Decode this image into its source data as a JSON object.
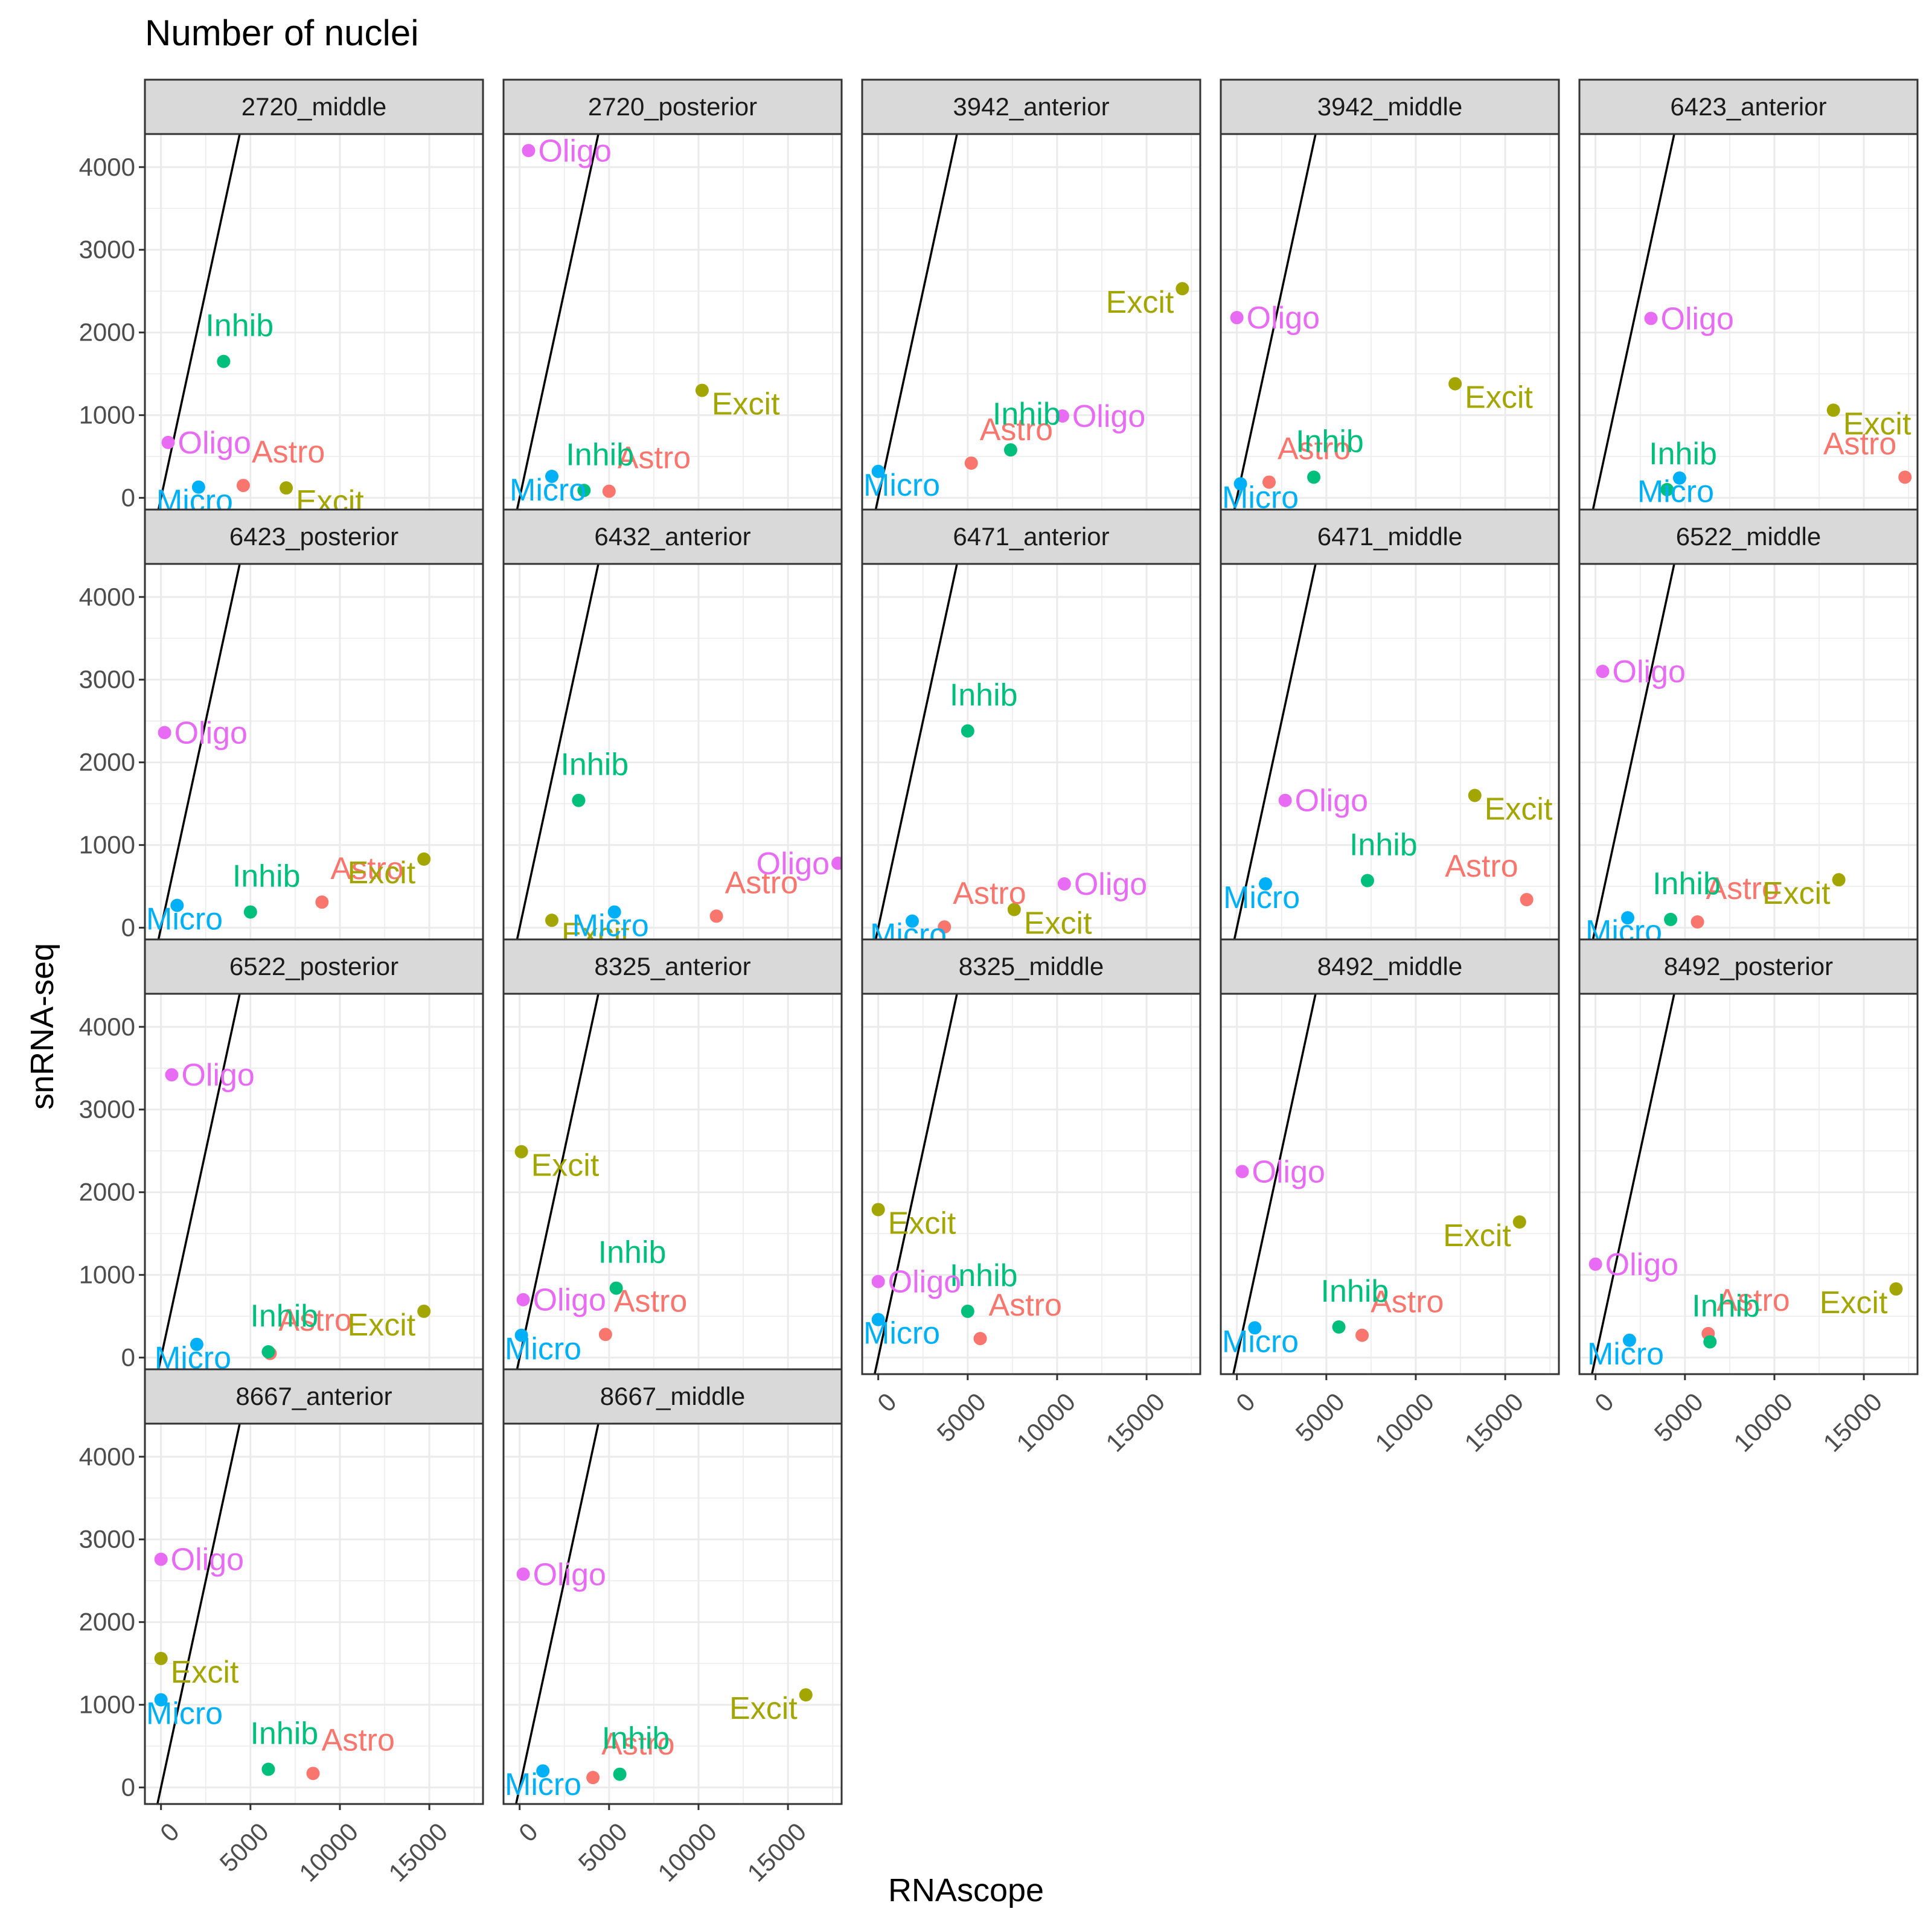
{
  "colors": {
    "Astro": "#F8766D",
    "Excit": "#A3A500",
    "Inhib": "#00BF7D",
    "Micro": "#00B0F6",
    "Oligo": "#E76BF3",
    "strip_bg": "#D9D9D9",
    "grid": "#EBEBEB",
    "axis_text": "#4D4D4D"
  },
  "chart_data": {
    "type": "scatter",
    "title": "Number of nuclei",
    "xlabel": "RNAscope",
    "ylabel": "snRNA-seq",
    "xlim": [
      -900,
      18000
    ],
    "ylim": [
      -200,
      4400
    ],
    "x_ticks": [
      0,
      5000,
      10000,
      15000
    ],
    "y_ticks": [
      0,
      1000,
      2000,
      3000,
      4000
    ],
    "grid": true,
    "reference_line": {
      "slope": 1,
      "intercept": 0
    },
    "legend": "none",
    "panels": [
      {
        "name": "2720_middle",
        "points": [
          {
            "label": "Astro",
            "x": 4600,
            "y": 150
          },
          {
            "label": "Excit",
            "x": 7000,
            "y": 120
          },
          {
            "label": "Inhib",
            "x": 3500,
            "y": 1650
          },
          {
            "label": "Micro",
            "x": 2100,
            "y": 130
          },
          {
            "label": "Oligo",
            "x": 400,
            "y": 670
          }
        ]
      },
      {
        "name": "2720_posterior",
        "points": [
          {
            "label": "Astro",
            "x": 5000,
            "y": 80
          },
          {
            "label": "Excit",
            "x": 10200,
            "y": 1300
          },
          {
            "label": "Inhib",
            "x": 3600,
            "y": 90
          },
          {
            "label": "Micro",
            "x": 1800,
            "y": 260
          },
          {
            "label": "Oligo",
            "x": 500,
            "y": 4200
          }
        ]
      },
      {
        "name": "3942_anterior",
        "points": [
          {
            "label": "Astro",
            "x": 5200,
            "y": 420
          },
          {
            "label": "Excit",
            "x": 17000,
            "y": 2530
          },
          {
            "label": "Inhib",
            "x": 7400,
            "y": 580
          },
          {
            "label": "Micro",
            "x": 0,
            "y": 320
          },
          {
            "label": "Oligo",
            "x": 10300,
            "y": 990
          }
        ]
      },
      {
        "name": "3942_middle",
        "points": [
          {
            "label": "Astro",
            "x": 1800,
            "y": 190
          },
          {
            "label": "Excit",
            "x": 12200,
            "y": 1380
          },
          {
            "label": "Inhib",
            "x": 4300,
            "y": 250
          },
          {
            "label": "Micro",
            "x": 200,
            "y": 170
          },
          {
            "label": "Oligo",
            "x": 0,
            "y": 2180
          }
        ]
      },
      {
        "name": "6423_anterior",
        "points": [
          {
            "label": "Astro",
            "x": 17300,
            "y": 250
          },
          {
            "label": "Excit",
            "x": 13300,
            "y": 1060
          },
          {
            "label": "Inhib",
            "x": 4000,
            "y": 100
          },
          {
            "label": "Micro",
            "x": 4700,
            "y": 240
          },
          {
            "label": "Oligo",
            "x": 3100,
            "y": 2170
          }
        ]
      },
      {
        "name": "6423_posterior",
        "points": [
          {
            "label": "Astro",
            "x": 9000,
            "y": 310
          },
          {
            "label": "Excit",
            "x": 14700,
            "y": 830
          },
          {
            "label": "Inhib",
            "x": 5000,
            "y": 190
          },
          {
            "label": "Micro",
            "x": 900,
            "y": 270
          },
          {
            "label": "Oligo",
            "x": 200,
            "y": 2360
          }
        ]
      },
      {
        "name": "6432_anterior",
        "points": [
          {
            "label": "Astro",
            "x": 11000,
            "y": 140
          },
          {
            "label": "Excit",
            "x": 1800,
            "y": 90
          },
          {
            "label": "Inhib",
            "x": 3300,
            "y": 1540
          },
          {
            "label": "Micro",
            "x": 5300,
            "y": 190
          },
          {
            "label": "Oligo",
            "x": 17800,
            "y": 780
          }
        ]
      },
      {
        "name": "6471_anterior",
        "points": [
          {
            "label": "Astro",
            "x": 3700,
            "y": 10
          },
          {
            "label": "Excit",
            "x": 7600,
            "y": 220
          },
          {
            "label": "Inhib",
            "x": 5000,
            "y": 2380
          },
          {
            "label": "Micro",
            "x": 1900,
            "y": 80
          },
          {
            "label": "Oligo",
            "x": 10400,
            "y": 530
          }
        ]
      },
      {
        "name": "6471_middle",
        "points": [
          {
            "label": "Astro",
            "x": 16200,
            "y": 340
          },
          {
            "label": "Excit",
            "x": 13300,
            "y": 1600
          },
          {
            "label": "Inhib",
            "x": 7300,
            "y": 570
          },
          {
            "label": "Micro",
            "x": 1600,
            "y": 530
          },
          {
            "label": "Oligo",
            "x": 2700,
            "y": 1540
          }
        ]
      },
      {
        "name": "6522_middle",
        "points": [
          {
            "label": "Astro",
            "x": 5700,
            "y": 70
          },
          {
            "label": "Excit",
            "x": 13600,
            "y": 580
          },
          {
            "label": "Inhib",
            "x": 4200,
            "y": 100
          },
          {
            "label": "Micro",
            "x": 1800,
            "y": 120
          },
          {
            "label": "Oligo",
            "x": 400,
            "y": 3100
          }
        ]
      },
      {
        "name": "6522_posterior",
        "points": [
          {
            "label": "Astro",
            "x": 6100,
            "y": 50
          },
          {
            "label": "Excit",
            "x": 14700,
            "y": 560
          },
          {
            "label": "Inhib",
            "x": 6000,
            "y": 70
          },
          {
            "label": "Micro",
            "x": 2000,
            "y": 160
          },
          {
            "label": "Oligo",
            "x": 600,
            "y": 3420
          }
        ]
      },
      {
        "name": "8325_anterior",
        "points": [
          {
            "label": "Astro",
            "x": 4800,
            "y": 280
          },
          {
            "label": "Excit",
            "x": 100,
            "y": 2490
          },
          {
            "label": "Inhib",
            "x": 5400,
            "y": 840
          },
          {
            "label": "Micro",
            "x": 100,
            "y": 270
          },
          {
            "label": "Oligo",
            "x": 200,
            "y": 700
          }
        ]
      },
      {
        "name": "8325_middle",
        "points": [
          {
            "label": "Astro",
            "x": 5700,
            "y": 230
          },
          {
            "label": "Excit",
            "x": 0,
            "y": 1790
          },
          {
            "label": "Inhib",
            "x": 5000,
            "y": 560
          },
          {
            "label": "Micro",
            "x": 0,
            "y": 460
          },
          {
            "label": "Oligo",
            "x": 0,
            "y": 920
          }
        ]
      },
      {
        "name": "8492_middle",
        "points": [
          {
            "label": "Astro",
            "x": 7000,
            "y": 270
          },
          {
            "label": "Excit",
            "x": 15800,
            "y": 1640
          },
          {
            "label": "Inhib",
            "x": 5700,
            "y": 370
          },
          {
            "label": "Micro",
            "x": 1000,
            "y": 360
          },
          {
            "label": "Oligo",
            "x": 300,
            "y": 2250
          }
        ]
      },
      {
        "name": "8492_posterior",
        "points": [
          {
            "label": "Astro",
            "x": 6300,
            "y": 290
          },
          {
            "label": "Excit",
            "x": 16800,
            "y": 830
          },
          {
            "label": "Inhib",
            "x": 6400,
            "y": 190
          },
          {
            "label": "Micro",
            "x": 1900,
            "y": 210
          },
          {
            "label": "Oligo",
            "x": 0,
            "y": 1130
          }
        ]
      },
      {
        "name": "8667_anterior",
        "points": [
          {
            "label": "Astro",
            "x": 8500,
            "y": 170
          },
          {
            "label": "Excit",
            "x": 0,
            "y": 1560
          },
          {
            "label": "Inhib",
            "x": 6000,
            "y": 220
          },
          {
            "label": "Micro",
            "x": 0,
            "y": 1060
          },
          {
            "label": "Oligo",
            "x": 0,
            "y": 2760
          }
        ]
      },
      {
        "name": "8667_middle",
        "points": [
          {
            "label": "Astro",
            "x": 4100,
            "y": 120
          },
          {
            "label": "Excit",
            "x": 16000,
            "y": 1120
          },
          {
            "label": "Inhib",
            "x": 5600,
            "y": 160
          },
          {
            "label": "Micro",
            "x": 1300,
            "y": 200
          },
          {
            "label": "Oligo",
            "x": 200,
            "y": 2580
          }
        ]
      }
    ]
  }
}
